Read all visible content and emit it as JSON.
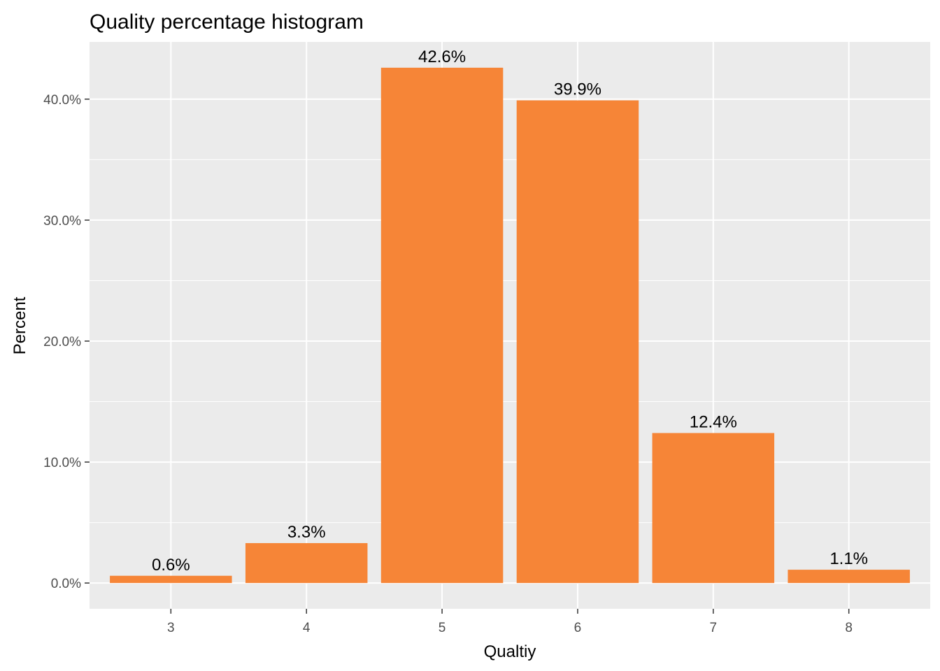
{
  "chart_data": {
    "type": "bar",
    "title": "Quality percentage histogram",
    "xlabel": "Qualtiy",
    "ylabel": "Percent",
    "categories": [
      "3",
      "4",
      "5",
      "6",
      "7",
      "8"
    ],
    "values": [
      0.6,
      3.3,
      42.6,
      39.9,
      12.4,
      1.1
    ],
    "value_labels": [
      "0.6%",
      "3.3%",
      "42.6%",
      "39.9%",
      "12.4%",
      "1.1%"
    ],
    "yticks": [
      0,
      10,
      20,
      30,
      40
    ],
    "ytick_labels": [
      "0.0%",
      "10.0%",
      "20.0%",
      "30.0%",
      "40.0%"
    ],
    "ylim": [
      -2.13,
      44.73
    ],
    "grid": true,
    "legend": "none",
    "colors": {
      "bar": "#f68537",
      "panel": "#ebebeb",
      "grid": "#ffffff"
    }
  }
}
